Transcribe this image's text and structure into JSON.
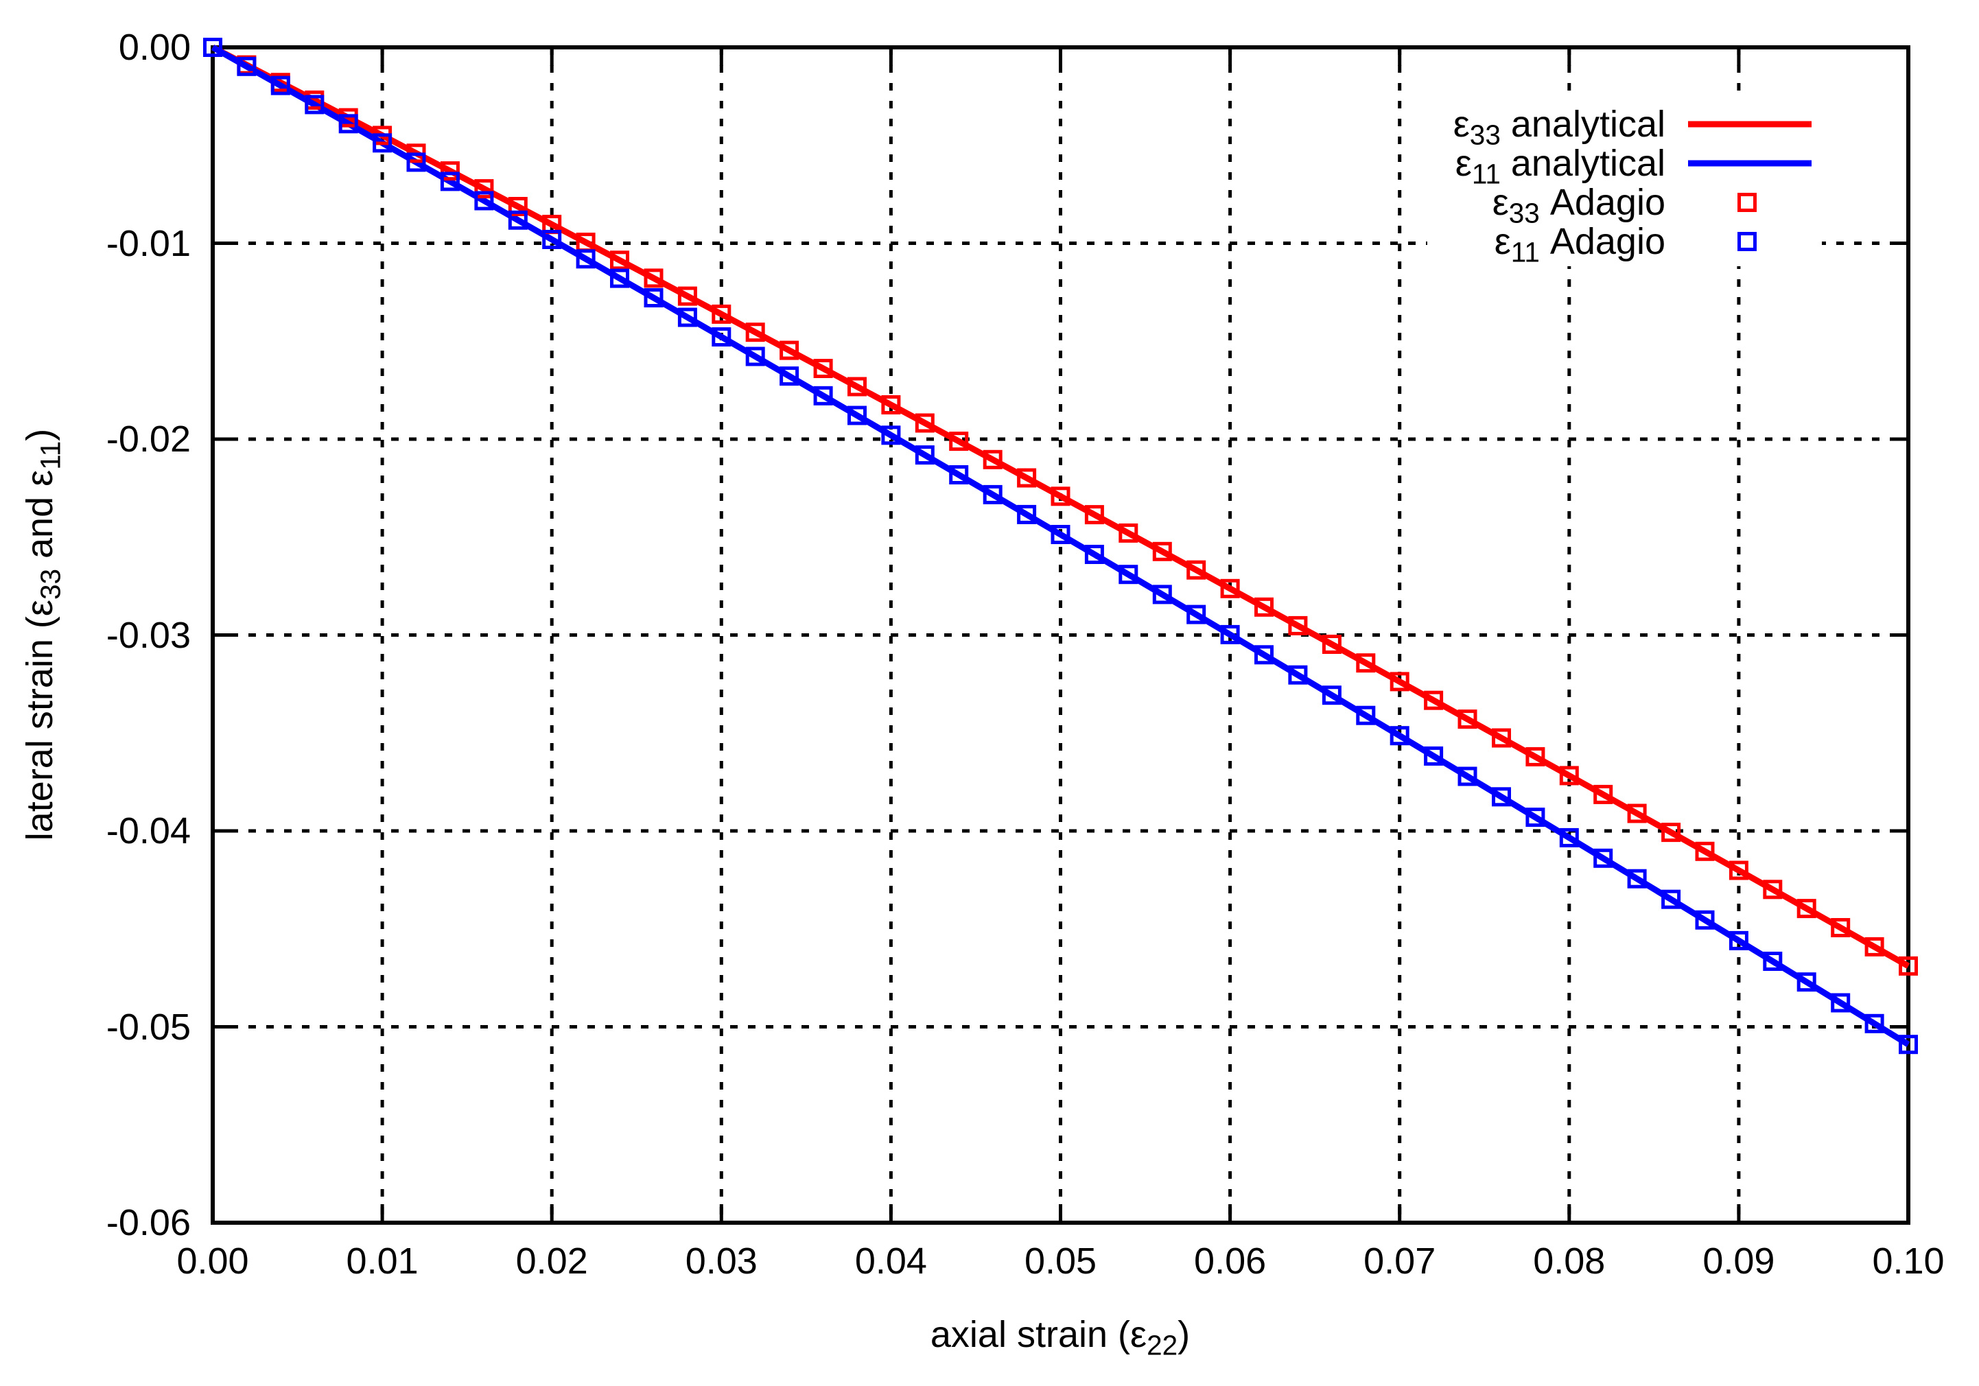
{
  "chart_data": {
    "type": "line+scatter",
    "title": "",
    "xlabel": {
      "pre": "axial strain (ε",
      "sub": "22",
      "post": ")"
    },
    "ylabel": {
      "pre": "lateral strain (ε",
      "sub1": "33",
      "mid": " and ε",
      "sub2": "11",
      "post": ")"
    },
    "xlim": [
      0.0,
      0.1
    ],
    "ylim": [
      -0.06,
      0.0
    ],
    "grid": true,
    "legend_position": "top-right",
    "background_color": "#ffffff",
    "axis_color": "#000000",
    "x_tick_labels": [
      "0.00",
      "0.01",
      "0.02",
      "0.03",
      "0.04",
      "0.05",
      "0.06",
      "0.07",
      "0.08",
      "0.09",
      "0.10"
    ],
    "x_tick_values": [
      0,
      0.01,
      0.02,
      0.03,
      0.04,
      0.05,
      0.06,
      0.07,
      0.08,
      0.09,
      0.1
    ],
    "y_tick_labels": [
      "0.00",
      "-0.01",
      "-0.02",
      "-0.03",
      "-0.04",
      "-0.05",
      "-0.06"
    ],
    "y_tick_values": [
      0,
      -0.01,
      -0.02,
      -0.03,
      -0.04,
      -0.05,
      -0.06
    ],
    "x": [
      0,
      0.002,
      0.004,
      0.006,
      0.008,
      0.01,
      0.012,
      0.014,
      0.016,
      0.018,
      0.02,
      0.022,
      0.024,
      0.026,
      0.028,
      0.03,
      0.032,
      0.034,
      0.036,
      0.038,
      0.04,
      0.042,
      0.044,
      0.046,
      0.048,
      0.05,
      0.052,
      0.054,
      0.056,
      0.058,
      0.06,
      0.062,
      0.064,
      0.066,
      0.068,
      0.07,
      0.072,
      0.074,
      0.076,
      0.078,
      0.08,
      0.082,
      0.084,
      0.086,
      0.088,
      0.09,
      0.092,
      0.094,
      0.096,
      0.098,
      0.1
    ],
    "y_e33": [
      0,
      -0.000896,
      -0.001794,
      -0.002694,
      -0.003595,
      -0.004498,
      -0.005403,
      -0.006309,
      -0.007218,
      -0.008127,
      -0.009039,
      -0.009952,
      -0.010867,
      -0.011784,
      -0.012702,
      -0.013622,
      -0.014544,
      -0.015467,
      -0.016393,
      -0.01732,
      -0.018248,
      -0.019178,
      -0.02011,
      -0.021044,
      -0.021979,
      -0.022916,
      -0.023855,
      -0.024795,
      -0.025738,
      -0.026681,
      -0.027627,
      -0.028574,
      -0.029523,
      -0.030474,
      -0.031426,
      -0.03238,
      -0.033336,
      -0.034293,
      -0.035253,
      -0.036213,
      -0.037176,
      -0.03814,
      -0.039106,
      -0.040074,
      -0.041043,
      -0.042014,
      -0.042987,
      -0.043961,
      -0.044938,
      -0.045916,
      -0.046895
    ],
    "y_e11": [
      0,
      -0.000972,
      -0.001946,
      -0.002922,
      -0.0039,
      -0.00488,
      -0.005862,
      -0.006845,
      -0.00783,
      -0.008818,
      -0.009807,
      -0.010798,
      -0.01179,
      -0.012785,
      -0.013782,
      -0.01478,
      -0.01578,
      -0.016782,
      -0.017787,
      -0.018792,
      -0.0198,
      -0.02081,
      -0.021821,
      -0.022834,
      -0.02385,
      -0.024867,
      -0.025886,
      -0.026906,
      -0.027929,
      -0.028954,
      -0.02998,
      -0.031008,
      -0.032038,
      -0.033071,
      -0.034104,
      -0.03514,
      -0.036178,
      -0.037217,
      -0.038258,
      -0.039302,
      -0.040347,
      -0.041394,
      -0.042443,
      -0.043493,
      -0.044546,
      -0.0456,
      -0.046656,
      -0.047714,
      -0.048774,
      -0.049836,
      -0.0509
    ],
    "series": [
      {
        "id": "e33-analytical",
        "legend": {
          "sym": "ε",
          "sub": "33",
          "text": " analytical"
        },
        "color": "#ff0000",
        "style": "line",
        "y_ref": "y_e33"
      },
      {
        "id": "e11-analytical",
        "legend": {
          "sym": "ε",
          "sub": "11",
          "text": " analytical"
        },
        "color": "#0000ff",
        "style": "line",
        "y_ref": "y_e11"
      },
      {
        "id": "e33-adagio",
        "legend": {
          "sym": "ε",
          "sub": "33",
          "text": " Adagio"
        },
        "color": "#ff0000",
        "style": "points",
        "y_ref": "y_e33"
      },
      {
        "id": "e11-adagio",
        "legend": {
          "sym": "ε",
          "sub": "11",
          "text": " Adagio"
        },
        "color": "#0000ff",
        "style": "points",
        "y_ref": "y_e11"
      }
    ]
  }
}
